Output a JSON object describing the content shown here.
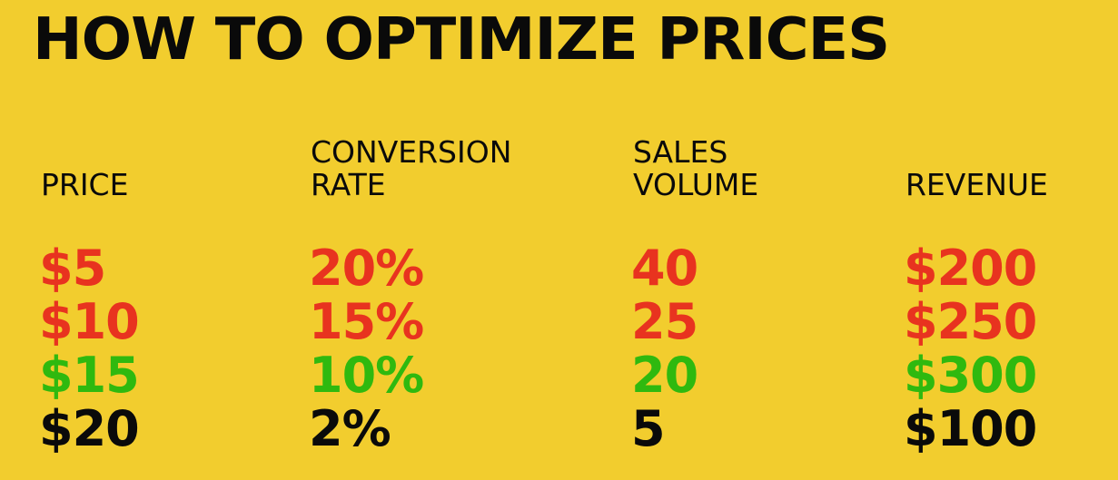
{
  "title": "HOW TO OPTIMIZE PRICES",
  "colors": {
    "background": "#f2cd2e",
    "bad": "#e8331f",
    "best": "#2fb90f",
    "neutral": "#0a0a0a"
  },
  "columns": [
    {
      "header": [
        "",
        "PRICE"
      ],
      "values": [
        "$5",
        "$10",
        "$15",
        "$20"
      ]
    },
    {
      "header": [
        "CONVERSION",
        "RATE"
      ],
      "values": [
        "20%",
        "15%",
        "10%",
        "2%"
      ]
    },
    {
      "header": [
        "SALES",
        "VOLUME"
      ],
      "values": [
        "40",
        "25",
        "20",
        "5"
      ]
    },
    {
      "header": [
        "",
        "REVENUE"
      ],
      "values": [
        "$200",
        "$250",
        "$300",
        "$100"
      ]
    }
  ],
  "row_status": [
    "bad",
    "bad",
    "best",
    "neutral"
  ]
}
